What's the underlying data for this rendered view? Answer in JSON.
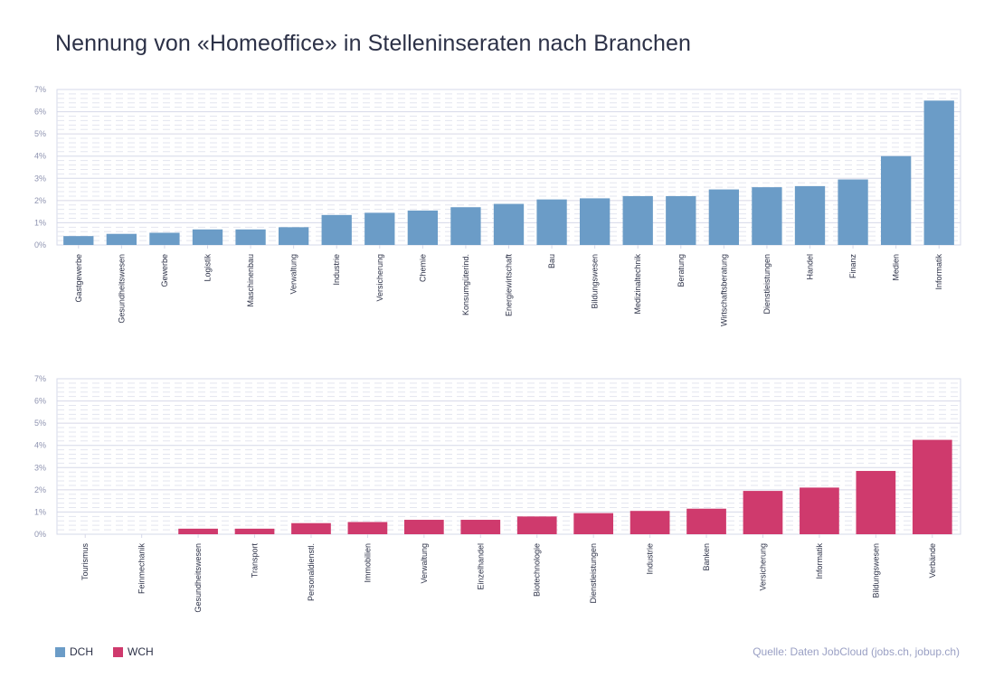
{
  "title": "Nennung von «Homeoffice» in Stelleninseraten nach Branchen",
  "source": "Quelle: Daten JobCloud (jobs.ch, jobup.ch)",
  "legend": [
    {
      "label": "DCH",
      "color": "#6b9cc7"
    },
    {
      "label": "WCH",
      "color": "#cf3a6d"
    }
  ],
  "chart_data": [
    {
      "type": "bar",
      "series_name": "DCH",
      "color": "#6b9cc7",
      "categories": [
        "Gastgewerbe",
        "Gesundheitswesen",
        "Gewerbe",
        "Logistik",
        "Maschinenbau",
        "Verwaltung",
        "Industrie",
        "Versicherung",
        "Chemie",
        "Konsumgüterind.",
        "Energiewirtschaft",
        "Bau",
        "Bildungswesen",
        "Medizinaltechnik",
        "Beratung",
        "Wirtschaftsberatung",
        "Dienstleistungen",
        "Handel",
        "Finanz",
        "Medien",
        "Informatik"
      ],
      "values": [
        0.4,
        0.5,
        0.55,
        0.7,
        0.7,
        0.8,
        1.35,
        1.45,
        1.55,
        1.7,
        1.85,
        2.05,
        2.1,
        2.2,
        2.2,
        2.5,
        2.6,
        2.65,
        2.95,
        4.0,
        6.5
      ],
      "ylim": [
        0,
        7
      ],
      "yticks": [
        "0%",
        "1%",
        "2%",
        "3%",
        "4%",
        "5%",
        "6%",
        "7%"
      ]
    },
    {
      "type": "bar",
      "series_name": "WCH",
      "color": "#cf3a6d",
      "categories": [
        "Tourismus",
        "Feinmechanik",
        "Gesundheitswesen",
        "Transport",
        "Personaldienstl.",
        "Immobilien",
        "Verwaltung",
        "Einzelhandel",
        "Biotechnologie",
        "Dienstleistungen",
        "Industrie",
        "Banken",
        "Versicherung",
        "Informatik",
        "Bildungswesen",
        "Verbände"
      ],
      "values": [
        0,
        0,
        0.25,
        0.25,
        0.5,
        0.55,
        0.65,
        0.65,
        0.8,
        0.95,
        1.05,
        1.15,
        1.95,
        2.1,
        2.85,
        4.25
      ],
      "ylim": [
        0,
        7
      ],
      "yticks": [
        "0%",
        "1%",
        "2%",
        "3%",
        "4%",
        "5%",
        "6%",
        "7%"
      ]
    }
  ]
}
